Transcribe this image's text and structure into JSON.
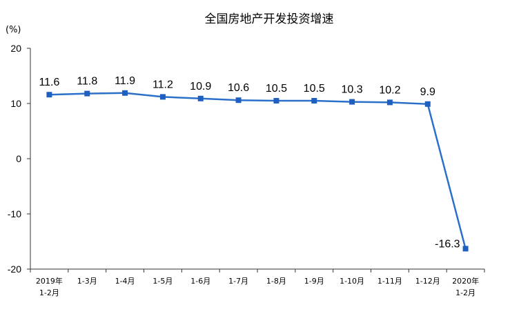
{
  "chart_data": {
    "type": "line",
    "title": "全国房地产开发投资增速",
    "ylabel": "(%)",
    "xlabel": "",
    "ylim": [
      -20,
      20
    ],
    "yticks": [
      20,
      10,
      0,
      -10,
      -20
    ],
    "grid": false,
    "legend": "none",
    "categories": [
      [
        "2019年",
        "1-2月"
      ],
      [
        "1-3月"
      ],
      [
        "1-4月"
      ],
      [
        "1-5月"
      ],
      [
        "1-6月"
      ],
      [
        "1-7月"
      ],
      [
        "1-8月"
      ],
      [
        "1-9月"
      ],
      [
        "1-10月"
      ],
      [
        "1-11月"
      ],
      [
        "1-12月"
      ],
      [
        "2020年",
        "1-2月"
      ]
    ],
    "series": [
      {
        "color": "#2a6fc9",
        "marker_color": "#1f5fbf",
        "values": [
          11.6,
          11.8,
          11.9,
          11.2,
          10.9,
          10.6,
          10.5,
          10.5,
          10.3,
          10.2,
          9.9,
          -16.3
        ],
        "labels": [
          "11.6",
          "11.8",
          "11.9",
          "11.2",
          "10.9",
          "10.6",
          "10.5",
          "10.5",
          "10.3",
          "10.2",
          "9.9",
          "-16.3"
        ]
      }
    ]
  }
}
